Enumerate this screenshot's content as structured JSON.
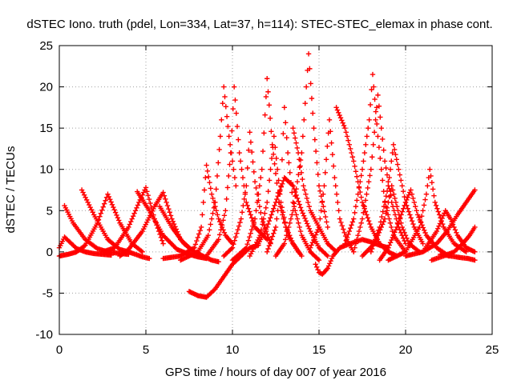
{
  "chart_data": {
    "type": "scatter",
    "title": "dSTEC Iono. truth (pdel, Lon=334, Lat=37, h=114): STEC-STEC_elemax in phase cont.",
    "xlabel": "GPS time / hours of day 007 of year 2016",
    "ylabel": "dSTEC  / TECUs",
    "xlim": [
      0,
      25
    ],
    "ylim": [
      -10,
      25
    ],
    "xticks": [
      0,
      5,
      10,
      15,
      20,
      25
    ],
    "yticks": [
      -10,
      -5,
      0,
      5,
      10,
      15,
      20,
      25
    ],
    "grid": true,
    "legend": "none",
    "marker": "plus",
    "color": "#ff0000",
    "series": [
      {
        "x": [
          0.0,
          0.3,
          0.6,
          1.0,
          1.5,
          2.0,
          2.5,
          3.0
        ],
        "y": [
          0.5,
          1.8,
          1.2,
          0.4,
          0.0,
          -0.2,
          -0.3,
          -0.4
        ]
      },
      {
        "x": [
          0.3,
          0.8,
          1.5,
          2.2,
          2.8,
          3.5,
          4.0
        ],
        "y": [
          5.6,
          3.5,
          1.5,
          0.4,
          0.0,
          -0.2,
          -0.3
        ]
      },
      {
        "x": [
          0.0,
          0.5,
          1.0,
          1.5,
          2.2,
          2.8,
          3.5,
          4.2,
          4.8
        ],
        "y": [
          -0.5,
          -0.3,
          0.0,
          0.8,
          3.5,
          7.0,
          3.5,
          1.0,
          0.0
        ]
      },
      {
        "x": [
          1.3,
          2.0,
          2.8,
          3.5,
          4.0,
          4.4,
          4.8,
          5.2
        ],
        "y": [
          7.5,
          4.5,
          1.5,
          0.3,
          0.0,
          -0.3,
          -0.6,
          -0.8
        ]
      },
      {
        "x": [
          2.5,
          3.2,
          4.0,
          4.6,
          5.0,
          5.5,
          6.0
        ],
        "y": [
          0.0,
          0.5,
          3.0,
          6.0,
          7.8,
          4.0,
          1.0
        ]
      },
      {
        "x": [
          3.5,
          4.0,
          4.8,
          5.5,
          6.0,
          6.5,
          7.0,
          7.5
        ],
        "y": [
          -0.5,
          0.3,
          2.5,
          5.5,
          7.2,
          4.0,
          1.5,
          0.5
        ]
      },
      {
        "x": [
          4.5,
          5.2,
          6.0,
          6.8,
          7.5,
          8.0,
          8.5
        ],
        "y": [
          7.3,
          5.0,
          2.0,
          0.3,
          -0.3,
          -0.6,
          -0.8
        ]
      },
      {
        "x": [
          5.8,
          6.5,
          7.2,
          7.8,
          8.3,
          8.8,
          9.2
        ],
        "y": [
          5.5,
          3.0,
          1.0,
          0.0,
          -0.5,
          -1.0,
          -1.2
        ]
      },
      {
        "x": [
          7.5,
          8.0,
          8.5,
          9.0,
          9.5,
          10.0,
          10.5,
          11.0,
          11.5
        ],
        "y": [
          -4.8,
          -5.3,
          -5.5,
          -4.5,
          -3.0,
          -1.5,
          -0.5,
          0.5,
          0.8
        ]
      },
      {
        "x": [
          6.0,
          7.0,
          7.8,
          8.2,
          8.5,
          8.8,
          9.2,
          9.6,
          10.0
        ],
        "y": [
          -0.8,
          -0.5,
          0.5,
          3.0,
          10.5,
          7.0,
          4.0,
          2.0,
          1.0
        ]
      },
      {
        "x": [
          7.0,
          8.0,
          8.6,
          9.0,
          9.3,
          9.5,
          9.8,
          10.2
        ],
        "y": [
          -1.0,
          0.0,
          2.0,
          6.0,
          14.0,
          20.0,
          14.0,
          8.0
        ]
      },
      {
        "x": [
          8.5,
          9.2,
          9.6,
          9.9,
          10.1,
          10.4,
          10.8,
          11.3,
          12.0
        ],
        "y": [
          -0.5,
          1.5,
          5.0,
          12.0,
          20.0,
          12.0,
          6.0,
          3.0,
          1.5
        ]
      },
      {
        "x": [
          9.5,
          10.0,
          10.5,
          10.8,
          11.0,
          11.3,
          11.7,
          12.2
        ],
        "y": [
          -0.5,
          0.5,
          4.0,
          8.0,
          14.5,
          8.5,
          4.0,
          1.0
        ]
      },
      {
        "x": [
          10.0,
          10.8,
          11.3,
          11.7,
          12.0,
          12.3,
          12.7,
          13.2,
          13.8
        ],
        "y": [
          -1.0,
          0.5,
          4.0,
          10.0,
          21.0,
          13.0,
          6.0,
          2.0,
          0.0
        ]
      },
      {
        "x": [
          11.0,
          11.6,
          12.0,
          12.4,
          12.8,
          13.1,
          13.5,
          14.0
        ],
        "y": [
          -0.5,
          2.0,
          6.0,
          14.0,
          6.0,
          3.0,
          1.0,
          -0.5
        ]
      },
      {
        "x": [
          12.0,
          12.5,
          12.8,
          13.0,
          13.2,
          13.5,
          14.0,
          14.5,
          15.0
        ],
        "y": [
          0.0,
          3.0,
          8.0,
          17.5,
          12.0,
          6.0,
          2.0,
          0.0,
          -1.0
        ]
      },
      {
        "x": [
          12.5,
          13.0,
          13.5,
          14.0,
          14.2,
          14.4,
          14.7,
          15.0,
          15.5
        ],
        "y": [
          -0.5,
          1.0,
          5.0,
          12.0,
          18.0,
          24.0,
          15.0,
          8.0,
          3.0
        ]
      },
      {
        "x": [
          11.5,
          12.0,
          12.5,
          13.0,
          13.5,
          14.0,
          14.5,
          15.0,
          15.5
        ],
        "y": [
          1.0,
          3.0,
          6.0,
          9.0,
          8.0,
          5.0,
          2.5,
          0.5,
          -0.5
        ]
      },
      {
        "x": [
          13.5,
          13.8,
          14.1,
          14.5,
          15.0,
          15.5,
          16.0
        ],
        "y": [
          15.0,
          12.0,
          8.0,
          5.0,
          3.0,
          1.0,
          0.0
        ]
      },
      {
        "x": [
          14.8,
          15.0,
          15.2,
          15.5,
          15.8,
          16.2,
          16.8,
          17.5,
          18.0,
          18.5,
          19.0
        ],
        "y": [
          -1.5,
          -2.5,
          -2.7,
          -2.0,
          -0.5,
          0.5,
          1.0,
          1.5,
          1.2,
          0.8,
          0.5
        ]
      },
      {
        "x": [
          14.5,
          15.0,
          15.3,
          15.6,
          15.9,
          16.2,
          16.6,
          17.0
        ],
        "y": [
          0.5,
          3.0,
          8.0,
          16.0,
          9.0,
          4.0,
          1.5,
          0.0
        ]
      },
      {
        "x": [
          16.0,
          16.5,
          17.0,
          17.5,
          18.0,
          18.5,
          19.0,
          19.5
        ],
        "y": [
          17.5,
          15.0,
          11.0,
          6.0,
          3.0,
          1.0,
          0.0,
          -0.5
        ]
      },
      {
        "x": [
          16.5,
          17.0,
          17.5,
          17.9,
          18.1,
          18.4,
          18.8,
          19.3,
          20.0
        ],
        "y": [
          1.0,
          4.0,
          10.0,
          16.0,
          21.5,
          14.0,
          6.0,
          2.0,
          0.0
        ]
      },
      {
        "x": [
          17.0,
          17.5,
          18.0,
          18.4,
          18.8,
          19.2,
          19.6,
          20.0
        ],
        "y": [
          0.0,
          4.0,
          10.0,
          19.0,
          11.0,
          6.0,
          3.0,
          1.0
        ]
      },
      {
        "x": [
          18.0,
          18.5,
          19.0,
          19.3,
          19.6,
          20.0,
          20.5,
          21.0
        ],
        "y": [
          0.0,
          3.0,
          8.0,
          13.0,
          10.0,
          6.0,
          3.0,
          1.0
        ]
      },
      {
        "x": [
          17.5,
          18.2,
          18.8,
          19.2,
          19.5,
          19.8,
          20.2,
          20.8
        ],
        "y": [
          -0.5,
          1.0,
          4.0,
          8.0,
          5.5,
          3.0,
          1.0,
          0.0
        ]
      },
      {
        "x": [
          18.5,
          19.0,
          19.5,
          20.0,
          20.3,
          20.7,
          21.2,
          21.8,
          22.5
        ],
        "y": [
          -1.0,
          0.5,
          3.0,
          6.0,
          7.5,
          4.5,
          2.0,
          0.5,
          -0.5
        ]
      },
      {
        "x": [
          19.0,
          20.0,
          20.8,
          21.2,
          21.4,
          21.7,
          22.2,
          22.8,
          23.5
        ],
        "y": [
          -1.0,
          0.0,
          3.0,
          7.0,
          10.0,
          6.0,
          3.0,
          1.0,
          0.0
        ]
      },
      {
        "x": [
          20.0,
          21.0,
          21.8,
          22.3,
          22.6,
          23.0,
          23.5,
          24.0
        ],
        "y": [
          -0.5,
          0.0,
          2.5,
          5.0,
          4.0,
          2.0,
          0.5,
          0.0
        ]
      },
      {
        "x": [
          21.0,
          21.8,
          22.4,
          23.0,
          23.5,
          24.0
        ],
        "y": [
          0.0,
          1.0,
          2.5,
          4.5,
          6.0,
          7.5
        ]
      },
      {
        "x": [
          21.5,
          22.2,
          22.8,
          23.3,
          23.7,
          24.0
        ],
        "y": [
          -1.0,
          -0.5,
          0.0,
          1.0,
          2.0,
          3.0
        ]
      },
      {
        "x": [
          22.0,
          22.6,
          23.2,
          23.6,
          24.0
        ],
        "y": [
          -0.3,
          -0.5,
          -0.7,
          -0.8,
          -1.0
        ]
      }
    ]
  }
}
